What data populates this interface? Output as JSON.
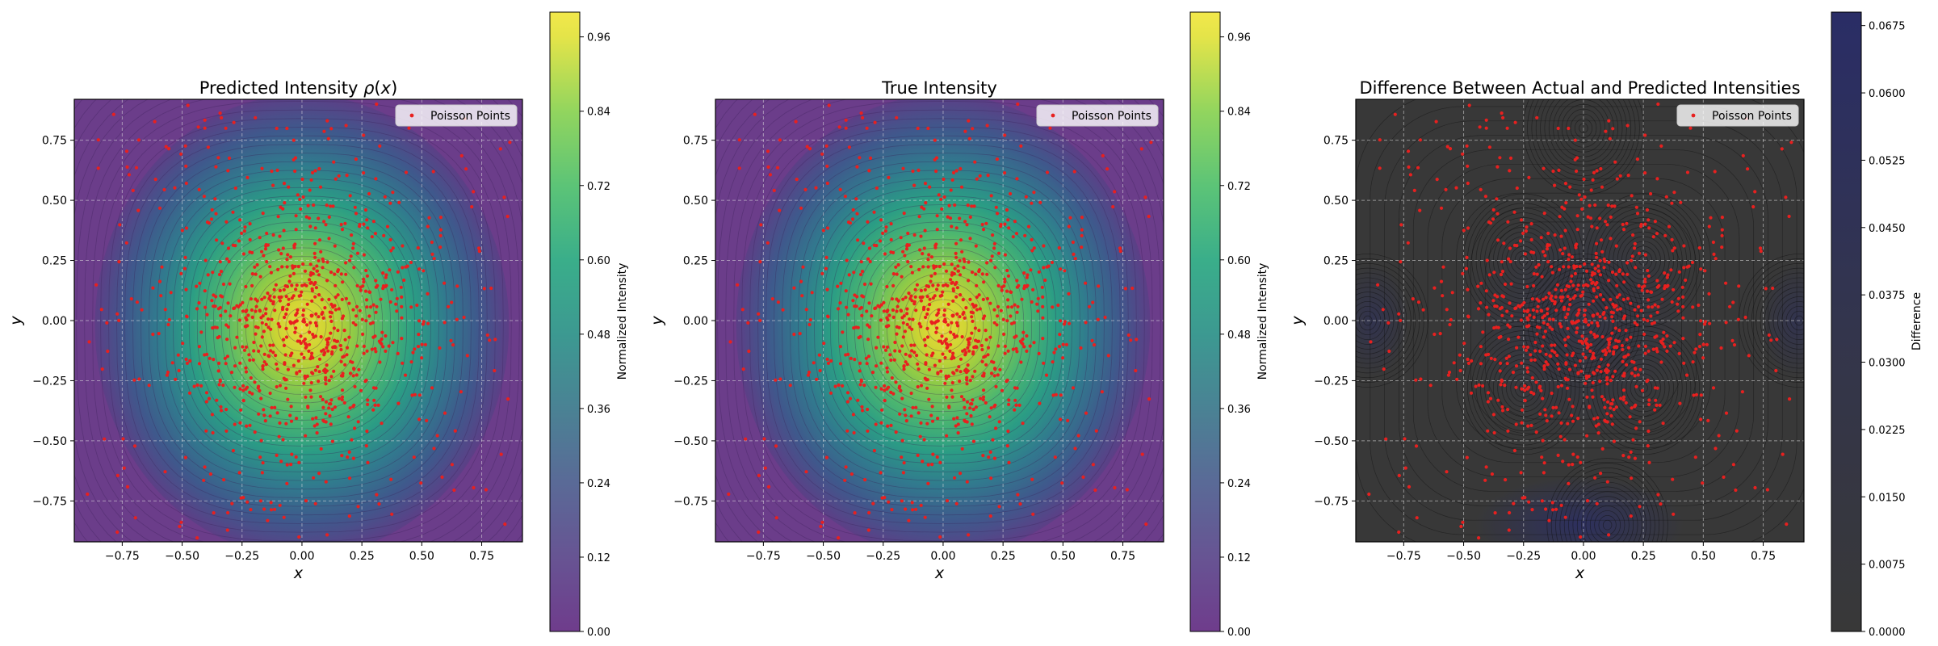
{
  "chart_data": [
    {
      "type": "heatmap",
      "title": "Predicted Intensity ρ(x)",
      "title_parts": {
        "main": "Predicted Intensity ",
        "rho": "ρ",
        "open": "(",
        "x": "x",
        "close": ")"
      },
      "xlabel": "x",
      "ylabel": "y",
      "xlim": [
        -0.95,
        0.92
      ],
      "ylim": [
        -0.92,
        0.92
      ],
      "xticks": [
        "−0.75",
        "−0.50",
        "−0.25",
        "0.00",
        "0.25",
        "0.50",
        "0.75"
      ],
      "xtick_values": [
        -0.75,
        -0.5,
        -0.25,
        0,
        0.25,
        0.5,
        0.75
      ],
      "yticks": [
        "0.75",
        "0.50",
        "0.25",
        "0.00",
        "−0.25",
        "−0.50",
        "−0.75"
      ],
      "ytick_values": [
        0.75,
        0.5,
        0.25,
        0,
        -0.25,
        -0.5,
        -0.75
      ],
      "grid": true,
      "colormap": "viridis",
      "intensity_model": {
        "form": "gaussian",
        "center": [
          0.0,
          -0.02
        ],
        "sigma_x": 0.27,
        "sigma_y": 0.3
      },
      "legend": {
        "label": "Poisson Points",
        "position": "top-right"
      },
      "colorbar": {
        "label": "Normalized Intensity",
        "range": [
          0,
          1.0
        ],
        "ticks": [
          "0.00",
          "0.12",
          "0.24",
          "0.36",
          "0.48",
          "0.60",
          "0.72",
          "0.84",
          "0.96"
        ],
        "tick_values": [
          0,
          0.12,
          0.24,
          0.36,
          0.48,
          0.6,
          0.72,
          0.84,
          0.96
        ]
      },
      "point_count": 950
    },
    {
      "type": "heatmap",
      "title": "True Intensity",
      "xlabel": "x",
      "ylabel": "y",
      "xlim": [
        -0.95,
        0.92
      ],
      "ylim": [
        -0.92,
        0.92
      ],
      "xticks": [
        "−0.75",
        "−0.50",
        "−0.25",
        "0.00",
        "0.25",
        "0.50",
        "0.75"
      ],
      "xtick_values": [
        -0.75,
        -0.5,
        -0.25,
        0,
        0.25,
        0.5,
        0.75
      ],
      "yticks": [
        "0.75",
        "0.50",
        "0.25",
        "0.00",
        "−0.25",
        "−0.50",
        "−0.75"
      ],
      "ytick_values": [
        0.75,
        0.5,
        0.25,
        0,
        -0.25,
        -0.5,
        -0.75
      ],
      "grid": true,
      "colormap": "viridis",
      "intensity_model": {
        "form": "gaussian",
        "center": [
          0.0,
          -0.02
        ],
        "sigma_x": 0.27,
        "sigma_y": 0.3
      },
      "legend": {
        "label": "Poisson Points",
        "position": "top-right"
      },
      "colorbar": {
        "label": "Normalized Intensity",
        "range": [
          0,
          1.0
        ],
        "ticks": [
          "0.00",
          "0.12",
          "0.24",
          "0.36",
          "0.48",
          "0.60",
          "0.72",
          "0.84",
          "0.96"
        ],
        "tick_values": [
          0,
          0.12,
          0.24,
          0.36,
          0.48,
          0.6,
          0.72,
          0.84,
          0.96
        ]
      },
      "point_count": 950
    },
    {
      "type": "heatmap",
      "title": "Difference Between Actual and Predicted Intensities",
      "xlabel": "x",
      "ylabel": "y",
      "xlim": [
        -0.95,
        0.92
      ],
      "ylim": [
        -0.92,
        0.92
      ],
      "xticks": [
        "−0.75",
        "−0.50",
        "−0.25",
        "0.00",
        "0.25",
        "0.50",
        "0.75"
      ],
      "xtick_values": [
        -0.75,
        -0.5,
        -0.25,
        0,
        0.25,
        0.5,
        0.75
      ],
      "yticks": [
        "0.75",
        "0.50",
        "0.25",
        "0.00",
        "−0.25",
        "−0.50",
        "−0.75"
      ],
      "ytick_values": [
        0.75,
        0.5,
        0.25,
        0,
        -0.25,
        -0.5,
        -0.75
      ],
      "grid": true,
      "colormap": "dark-gray-to-navy",
      "legend": {
        "label": "Poisson Points",
        "position": "top-right"
      },
      "colorbar": {
        "label": "Difference",
        "range": [
          0,
          0.069
        ],
        "ticks": [
          "0.0000",
          "0.0075",
          "0.0150",
          "0.0225",
          "0.0300",
          "0.0375",
          "0.0450",
          "0.0525",
          "0.0600",
          "0.0675"
        ],
        "tick_values": [
          0,
          0.0075,
          0.015,
          0.0225,
          0.03,
          0.0375,
          0.045,
          0.0525,
          0.06,
          0.0675
        ]
      },
      "point_count": 950
    }
  ],
  "colors": {
    "points": "#e8201f",
    "grid": "#d9d9d9",
    "axis": "#000000",
    "viridis": [
      "#440154",
      "#482878",
      "#3e4989",
      "#31688e",
      "#26828e",
      "#1f9e89",
      "#35b779",
      "#6ece58",
      "#b5de2b",
      "#fde725"
    ],
    "diff_low": "#3a3a3a",
    "diff_high": "#2b2f66"
  }
}
